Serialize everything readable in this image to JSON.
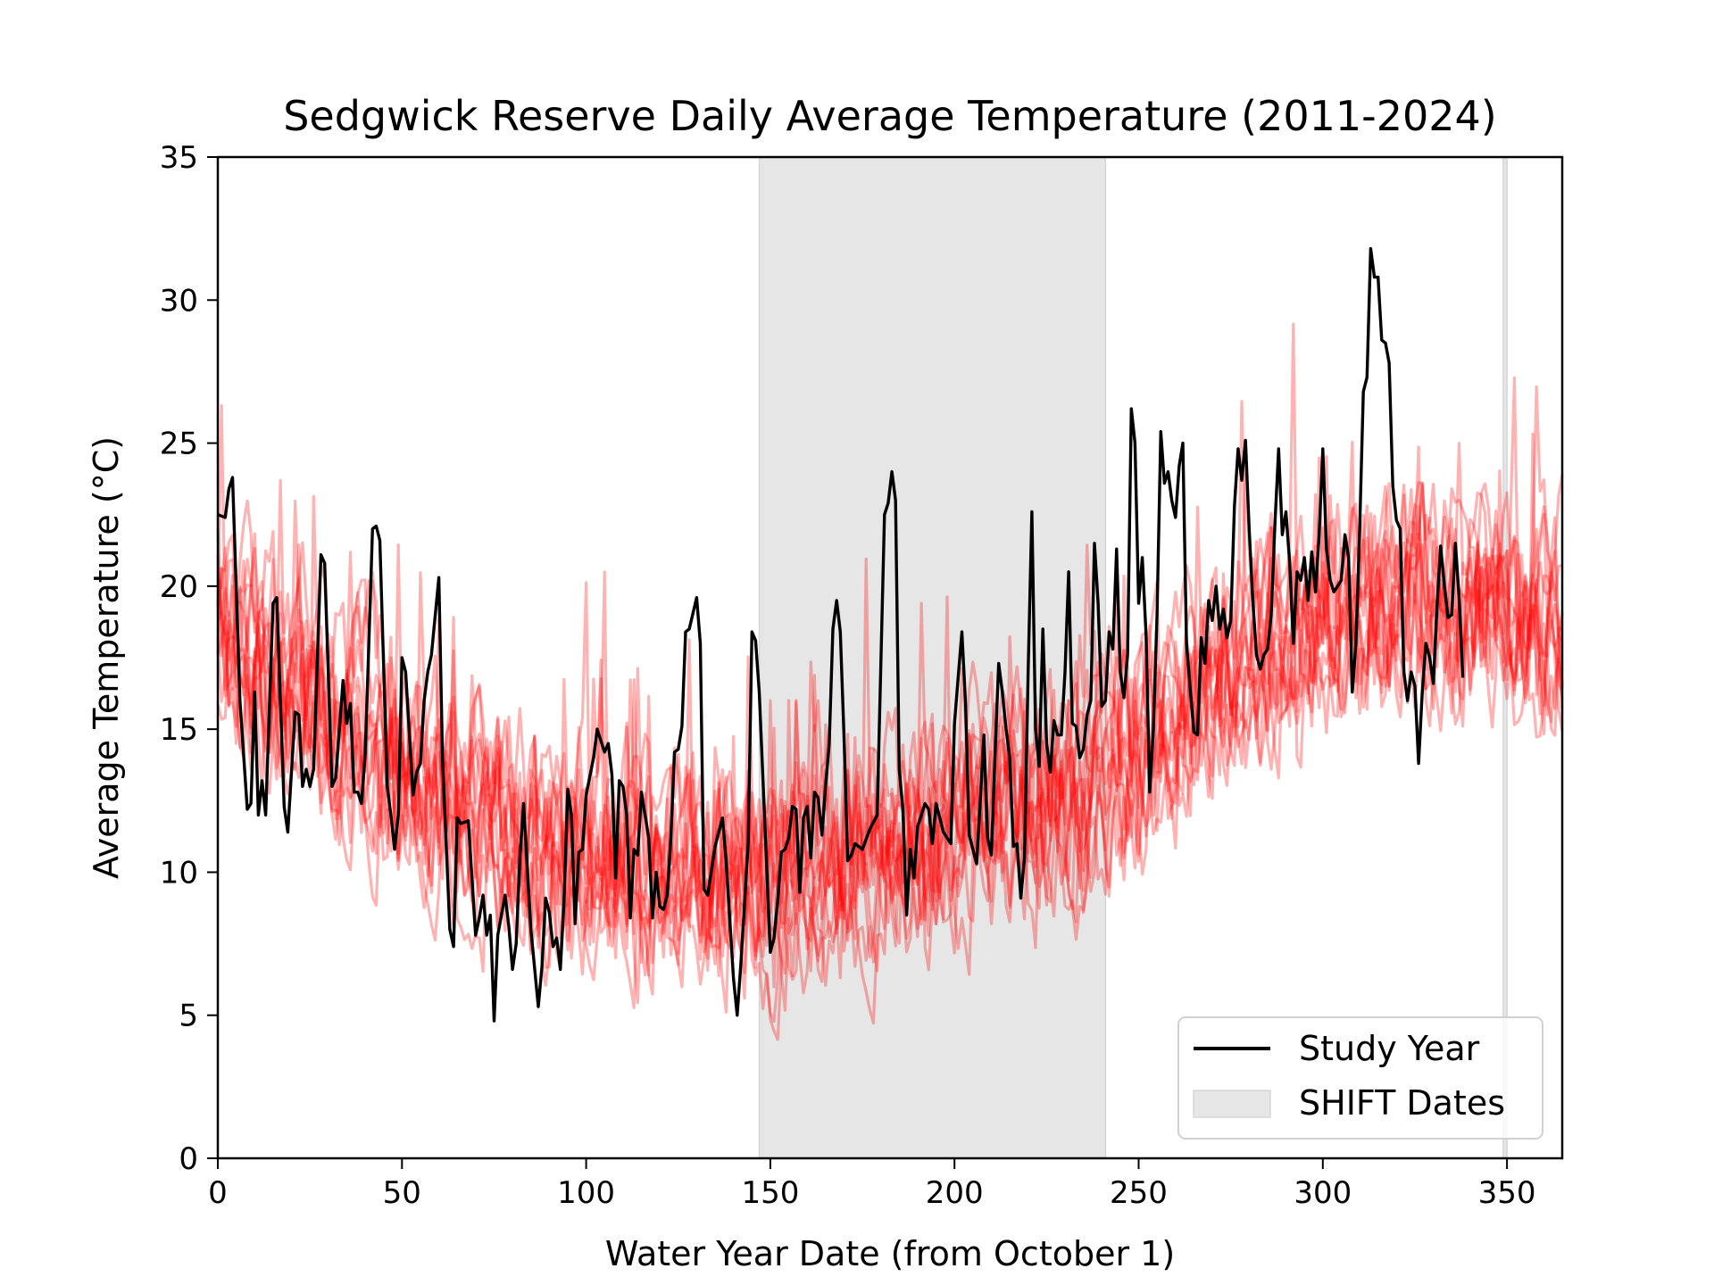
{
  "chart_data": {
    "type": "line",
    "title": "Sedgwick Reserve Daily Average Temperature (2011-2024)",
    "xlabel": "Water Year Date (from October 1)",
    "ylabel": "Average Temperature (°C)",
    "xlim": [
      0,
      365
    ],
    "ylim": [
      0,
      35
    ],
    "xticks": [
      0,
      50,
      100,
      150,
      200,
      250,
      300,
      350
    ],
    "yticks": [
      0,
      5,
      10,
      15,
      20,
      25,
      30,
      35
    ],
    "grid": false,
    "legend_position": "lower-right",
    "colors": {
      "other_years": "#ff0000",
      "study_year": "#000000",
      "shift_band": "#e6e6e6"
    },
    "shift_spans": [
      [
        147,
        241
      ],
      [
        349,
        350
      ]
    ],
    "background_climatology": {
      "note": "",
      "years": 13,
      "mean_profile": [
        [
          0,
          18.2
        ],
        [
          30,
          16.0
        ],
        [
          60,
          13.0
        ],
        [
          90,
          10.8
        ],
        [
          120,
          10.2
        ],
        [
          150,
          10.0
        ],
        [
          180,
          11.0
        ],
        [
          210,
          12.2
        ],
        [
          240,
          13.5
        ],
        [
          270,
          16.5
        ],
        [
          300,
          19.2
        ],
        [
          330,
          20.0
        ],
        [
          350,
          19.5
        ],
        [
          365,
          18.5
        ]
      ]
    },
    "series": [
      {
        "name": "Study Year",
        "values": [
          [
            0,
            22.5
          ],
          [
            2,
            22.4
          ],
          [
            3,
            23.4
          ],
          [
            4,
            23.8
          ],
          [
            6,
            16.0
          ],
          [
            8,
            12.2
          ],
          [
            9,
            12.4
          ],
          [
            10,
            16.3
          ],
          [
            11,
            12.0
          ],
          [
            12,
            13.2
          ],
          [
            13,
            12.0
          ],
          [
            15,
            19.4
          ],
          [
            16,
            19.6
          ],
          [
            18,
            12.3
          ],
          [
            19,
            11.4
          ],
          [
            21,
            15.6
          ],
          [
            22,
            15.5
          ],
          [
            23,
            13.0
          ],
          [
            24,
            13.6
          ],
          [
            25,
            13.0
          ],
          [
            26,
            13.6
          ],
          [
            28,
            21.1
          ],
          [
            29,
            20.8
          ],
          [
            31,
            13.0
          ],
          [
            32,
            13.3
          ],
          [
            34,
            16.7
          ],
          [
            35,
            15.2
          ],
          [
            36,
            15.9
          ],
          [
            37,
            12.8
          ],
          [
            38,
            12.8
          ],
          [
            39,
            12.4
          ],
          [
            40,
            14.1
          ],
          [
            41,
            18.0
          ],
          [
            42,
            22.0
          ],
          [
            43,
            22.1
          ],
          [
            44,
            21.6
          ],
          [
            46,
            13.0
          ],
          [
            47,
            12.0
          ],
          [
            48,
            10.8
          ],
          [
            49,
            12.0
          ],
          [
            50,
            17.5
          ],
          [
            51,
            17.0
          ],
          [
            53,
            12.7
          ],
          [
            54,
            13.5
          ],
          [
            55,
            13.8
          ],
          [
            56,
            16.0
          ],
          [
            57,
            17.0
          ],
          [
            58,
            17.6
          ],
          [
            60,
            20.3
          ],
          [
            61,
            14.0
          ],
          [
            63,
            8.0
          ],
          [
            64,
            7.4
          ],
          [
            65,
            11.9
          ],
          [
            66,
            11.7
          ],
          [
            68,
            11.8
          ],
          [
            70,
            7.8
          ],
          [
            71,
            8.4
          ],
          [
            72,
            9.2
          ],
          [
            73,
            7.8
          ],
          [
            74,
            8.5
          ],
          [
            75,
            4.8
          ],
          [
            76,
            7.8
          ],
          [
            78,
            9.2
          ],
          [
            79,
            8.1
          ],
          [
            80,
            6.6
          ],
          [
            81,
            7.5
          ],
          [
            82,
            10.5
          ],
          [
            83,
            12.4
          ],
          [
            85,
            8.0
          ],
          [
            87,
            5.3
          ],
          [
            88,
            6.7
          ],
          [
            89,
            9.1
          ],
          [
            90,
            8.6
          ],
          [
            91,
            7.4
          ],
          [
            92,
            7.7
          ],
          [
            93,
            6.6
          ],
          [
            94,
            9.0
          ],
          [
            95,
            12.9
          ],
          [
            96,
            12.0
          ],
          [
            97,
            8.2
          ],
          [
            98,
            10.7
          ],
          [
            99,
            10.8
          ],
          [
            100,
            12.7
          ],
          [
            102,
            14.0
          ],
          [
            103,
            15.0
          ],
          [
            105,
            14.2
          ],
          [
            106,
            14.5
          ],
          [
            107,
            13.4
          ],
          [
            108,
            9.8
          ],
          [
            109,
            13.2
          ],
          [
            110,
            13.0
          ],
          [
            111,
            12.0
          ],
          [
            112,
            8.4
          ],
          [
            113,
            10.8
          ],
          [
            114,
            10.6
          ],
          [
            115,
            12.8
          ],
          [
            117,
            11.2
          ],
          [
            118,
            8.4
          ],
          [
            119,
            10.0
          ],
          [
            120,
            8.8
          ],
          [
            121,
            8.7
          ],
          [
            122,
            9.2
          ],
          [
            123,
            11.2
          ],
          [
            124,
            14.2
          ],
          [
            125,
            14.3
          ],
          [
            126,
            15.1
          ],
          [
            127,
            18.4
          ],
          [
            128,
            18.5
          ],
          [
            130,
            19.6
          ],
          [
            131,
            18.0
          ],
          [
            132,
            9.4
          ],
          [
            133,
            9.2
          ],
          [
            135,
            10.9
          ],
          [
            137,
            11.9
          ],
          [
            138,
            10.4
          ],
          [
            140,
            6.3
          ],
          [
            141,
            5.0
          ],
          [
            142,
            6.8
          ],
          [
            144,
            11.0
          ],
          [
            145,
            18.4
          ],
          [
            146,
            18.1
          ],
          [
            147,
            16.3
          ],
          [
            150,
            7.2
          ],
          [
            151,
            7.7
          ],
          [
            152,
            9.0
          ],
          [
            153,
            10.7
          ],
          [
            154,
            10.8
          ],
          [
            155,
            11.2
          ],
          [
            156,
            12.3
          ],
          [
            157,
            12.2
          ],
          [
            158,
            9.3
          ],
          [
            159,
            11.9
          ],
          [
            160,
            12.3
          ],
          [
            161,
            10.5
          ],
          [
            162,
            12.8
          ],
          [
            163,
            12.6
          ],
          [
            164,
            11.3
          ],
          [
            165,
            13.0
          ],
          [
            166,
            14.5
          ],
          [
            167,
            18.5
          ],
          [
            168,
            19.5
          ],
          [
            169,
            18.4
          ],
          [
            170,
            14.8
          ],
          [
            171,
            10.4
          ],
          [
            172,
            10.6
          ],
          [
            173,
            11.0
          ],
          [
            175,
            10.8
          ],
          [
            177,
            11.5
          ],
          [
            179,
            12.0
          ],
          [
            181,
            22.5
          ],
          [
            182,
            22.9
          ],
          [
            183,
            24.0
          ],
          [
            184,
            23.0
          ],
          [
            185,
            13.6
          ],
          [
            186,
            12.2
          ],
          [
            187,
            8.5
          ],
          [
            188,
            10.8
          ],
          [
            189,
            9.8
          ],
          [
            190,
            11.6
          ],
          [
            192,
            12.4
          ],
          [
            193,
            12.2
          ],
          [
            194,
            11.0
          ],
          [
            195,
            12.4
          ],
          [
            197,
            11.4
          ],
          [
            198,
            11.2
          ],
          [
            199,
            11.0
          ],
          [
            200,
            15.2
          ],
          [
            201,
            16.8
          ],
          [
            202,
            18.4
          ],
          [
            203,
            15.9
          ],
          [
            204,
            11.3
          ],
          [
            206,
            10.3
          ],
          [
            207,
            12.5
          ],
          [
            208,
            14.8
          ],
          [
            209,
            11.2
          ],
          [
            210,
            10.6
          ],
          [
            211,
            14.1
          ],
          [
            212,
            17.3
          ],
          [
            213,
            16.3
          ],
          [
            214,
            15.0
          ],
          [
            215,
            14.0
          ],
          [
            216,
            10.9
          ],
          [
            217,
            11.0
          ],
          [
            218,
            9.1
          ],
          [
            219,
            10.5
          ],
          [
            220,
            17.0
          ],
          [
            221,
            22.6
          ],
          [
            222,
            15.0
          ],
          [
            223,
            13.7
          ],
          [
            224,
            18.5
          ],
          [
            225,
            14.5
          ],
          [
            226,
            13.5
          ],
          [
            227,
            15.3
          ],
          [
            228,
            14.8
          ],
          [
            229,
            14.8
          ],
          [
            230,
            17.0
          ],
          [
            231,
            20.5
          ],
          [
            232,
            15.2
          ],
          [
            233,
            15.1
          ],
          [
            234,
            14.0
          ],
          [
            235,
            14.3
          ],
          [
            236,
            15.5
          ],
          [
            237,
            16.0
          ],
          [
            238,
            21.5
          ],
          [
            239,
            19.4
          ],
          [
            240,
            15.8
          ],
          [
            241,
            16.0
          ],
          [
            242,
            18.4
          ],
          [
            243,
            17.8
          ],
          [
            244,
            21.3
          ],
          [
            245,
            17.0
          ],
          [
            246,
            16.1
          ],
          [
            247,
            17.6
          ],
          [
            248,
            26.2
          ],
          [
            249,
            25.0
          ],
          [
            250,
            19.4
          ],
          [
            251,
            21.0
          ],
          [
            252,
            18.3
          ],
          [
            253,
            12.8
          ],
          [
            254,
            15.0
          ],
          [
            255,
            19.0
          ],
          [
            256,
            25.4
          ],
          [
            257,
            23.6
          ],
          [
            258,
            24.0
          ],
          [
            259,
            23.0
          ],
          [
            260,
            22.4
          ],
          [
            261,
            24.2
          ],
          [
            262,
            25.0
          ],
          [
            263,
            18.0
          ],
          [
            264,
            16.4
          ],
          [
            265,
            14.9
          ],
          [
            266,
            14.8
          ],
          [
            267,
            18.2
          ],
          [
            268,
            17.3
          ],
          [
            269,
            19.5
          ],
          [
            270,
            18.8
          ],
          [
            271,
            20.0
          ],
          [
            272,
            18.5
          ],
          [
            273,
            19.2
          ],
          [
            274,
            18.2
          ],
          [
            275,
            18.8
          ],
          [
            276,
            22.8
          ],
          [
            277,
            24.8
          ],
          [
            278,
            23.7
          ],
          [
            279,
            25.1
          ],
          [
            280,
            22.0
          ],
          [
            281,
            19.5
          ],
          [
            282,
            17.6
          ],
          [
            283,
            17.1
          ],
          [
            284,
            17.6
          ],
          [
            285,
            17.8
          ],
          [
            286,
            19.0
          ],
          [
            287,
            22.2
          ],
          [
            288,
            24.8
          ],
          [
            289,
            21.8
          ],
          [
            290,
            22.6
          ],
          [
            291,
            20.8
          ],
          [
            292,
            18.0
          ],
          [
            293,
            20.5
          ],
          [
            294,
            20.2
          ],
          [
            295,
            21.0
          ],
          [
            296,
            19.5
          ],
          [
            297,
            21.2
          ],
          [
            298,
            19.8
          ],
          [
            299,
            21.8
          ],
          [
            300,
            24.8
          ],
          [
            301,
            21.3
          ],
          [
            302,
            20.2
          ],
          [
            303,
            19.8
          ],
          [
            304,
            20.0
          ],
          [
            305,
            20.2
          ],
          [
            306,
            21.8
          ],
          [
            307,
            21.0
          ],
          [
            308,
            16.3
          ],
          [
            309,
            18.0
          ],
          [
            310,
            22.0
          ],
          [
            311,
            26.8
          ],
          [
            312,
            27.3
          ],
          [
            313,
            31.8
          ],
          [
            314,
            30.8
          ],
          [
            315,
            30.8
          ],
          [
            316,
            28.6
          ],
          [
            317,
            28.5
          ],
          [
            318,
            27.8
          ],
          [
            319,
            23.5
          ],
          [
            320,
            22.3
          ],
          [
            321,
            22.0
          ],
          [
            322,
            17.0
          ],
          [
            323,
            16.0
          ],
          [
            324,
            17.0
          ],
          [
            325,
            16.5
          ],
          [
            326,
            13.8
          ],
          [
            327,
            16.3
          ],
          [
            328,
            18.0
          ],
          [
            329,
            17.5
          ],
          [
            330,
            16.6
          ],
          [
            331,
            19.3
          ],
          [
            332,
            21.4
          ],
          [
            333,
            20.0
          ],
          [
            334,
            18.9
          ],
          [
            335,
            19.0
          ],
          [
            336,
            21.5
          ],
          [
            337,
            19.6
          ],
          [
            338,
            16.8
          ]
        ]
      }
    ],
    "legend": [
      {
        "label": "Study Year",
        "kind": "line"
      },
      {
        "label": "SHIFT Dates",
        "kind": "patch"
      }
    ]
  }
}
